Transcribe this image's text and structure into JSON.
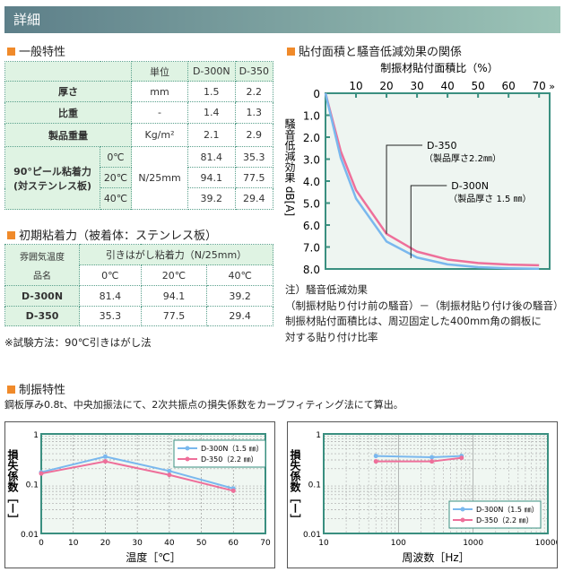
{
  "header": {
    "title": "詳細"
  },
  "general": {
    "title": "一般特性",
    "col_unit": "単位",
    "col_a": "D-300N",
    "col_b": "D-350",
    "rows": [
      {
        "label": "厚さ",
        "unit": "mm",
        "a": "1.5",
        "b": "2.2"
      },
      {
        "label": "比重",
        "unit": "-",
        "a": "1.4",
        "b": "1.3"
      },
      {
        "label": "製品重量",
        "unit": "Kg/m²",
        "a": "2.1",
        "b": "2.9"
      }
    ],
    "peel_label": "90°ピール粘着力",
    "peel_sub": "(対ステンレス板)",
    "peel_unit": "N/25mm",
    "peel": [
      {
        "temp": "0℃",
        "a": "81.4",
        "b": "35.3"
      },
      {
        "temp": "20℃",
        "a": "94.1",
        "b": "77.5"
      },
      {
        "temp": "40℃",
        "a": "39.2",
        "b": "29.4"
      }
    ]
  },
  "initial": {
    "title": "初期粘着力（被着体：ステンレス板）",
    "corner_top": "雰囲気温度",
    "corner_bottom": "品名",
    "group": "引きはがし粘着力（N/25mm）",
    "temps": [
      "0℃",
      "20℃",
      "40℃"
    ],
    "rows": [
      {
        "name": "D-300N",
        "v": [
          "81.4",
          "94.1",
          "39.2"
        ]
      },
      {
        "name": "D-350",
        "v": [
          "35.3",
          "77.5",
          "29.4"
        ]
      }
    ],
    "note": "※試験方法：90℃引きはがし法"
  },
  "noise": {
    "title": "貼付面積と騒音低減効果の関係",
    "notes": [
      "注）騒音低減効果",
      "（制振材貼り付け前の騒音）－（制振材貼り付け後の騒音）",
      "制振材貼付面積比は、周辺固定した400mm角の鋼板に",
      "対する貼り付け比率"
    ]
  },
  "damping": {
    "title": "制振特性",
    "desc": "鋼板厚み0.8t、中央加振法にて、2次共振点の損失係数をカーブフィティング法にて算出。"
  },
  "colors": {
    "blue": "#7ab8ee",
    "pink": "#ee6f9a",
    "frame": "#3a8f80"
  },
  "chart_data": [
    {
      "type": "line",
      "xlabel": "制振材貼付面積比（%）",
      "ylabel": "騒音低減効果 dB[A]",
      "xticks": [
        "10",
        "20",
        "30",
        "40",
        "50",
        "60",
        "70"
      ],
      "yticks": [
        "0",
        "1.0",
        "2.0",
        "3.0",
        "4.0",
        "5.0",
        "6.0",
        "7.0",
        "8.0"
      ],
      "xlim": [
        0,
        72
      ],
      "ylim": [
        0,
        8
      ],
      "y_inverted": true,
      "x": [
        0,
        5,
        10,
        20,
        30,
        40,
        50,
        60,
        70
      ],
      "series": [
        {
          "name": "D-300N",
          "sub": "（製品厚さ 1.5 ㎜）",
          "color": "#7ab8ee",
          "values": [
            0,
            2.94,
            4.79,
            6.75,
            7.48,
            7.79,
            7.92,
            7.97,
            7.99
          ]
        },
        {
          "name": "D-350",
          "sub": "（製品厚さ2.2㎜）",
          "color": "#ee6f9a",
          "values": [
            0,
            2.64,
            4.41,
            6.4,
            7.21,
            7.57,
            7.73,
            7.8,
            7.83
          ]
        }
      ]
    },
    {
      "type": "line",
      "xlabel": "温度［℃］",
      "ylabel": "損失係数［ー］",
      "xlim": [
        0,
        70
      ],
      "ylim": [
        0.01,
        1
      ],
      "yscale": "log",
      "grid": true,
      "legend": "top-right",
      "xticks": [
        "0",
        "10",
        "20",
        "30",
        "40",
        "50",
        "60",
        "70"
      ],
      "yticks": [
        "0.01",
        "0.1",
        "1"
      ],
      "series": [
        {
          "name": "D-300N（1.5 ㎜）",
          "color": "#7ab8ee",
          "x": [
            0,
            20,
            40,
            60
          ],
          "values": [
            0.17,
            0.35,
            0.18,
            0.08
          ]
        },
        {
          "name": "D-350（2.2 ㎜）",
          "color": "#ee6f9a",
          "x": [
            0,
            20,
            40,
            60
          ],
          "values": [
            0.16,
            0.28,
            0.15,
            0.072
          ]
        }
      ]
    },
    {
      "type": "line",
      "xlabel": "周波数［Hz］",
      "ylabel": "損失係数［ー］",
      "xlim": [
        10,
        10000
      ],
      "xscale": "log",
      "ylim": [
        0.01,
        1
      ],
      "yscale": "log",
      "grid": true,
      "legend": "bottom-right",
      "xticks": [
        "10",
        "100",
        "1000",
        "10000"
      ],
      "yticks": [
        "0.01",
        "0.1",
        "1"
      ],
      "series": [
        {
          "name": "D-300N（1.5 ㎜）",
          "color": "#7ab8ee",
          "x": [
            50,
            280,
            700
          ],
          "values": [
            0.36,
            0.34,
            0.36
          ]
        },
        {
          "name": "D-350（2.2 ㎜）",
          "color": "#ee6f9a",
          "x": [
            50,
            280,
            700
          ],
          "values": [
            0.28,
            0.28,
            0.33
          ]
        }
      ]
    }
  ]
}
